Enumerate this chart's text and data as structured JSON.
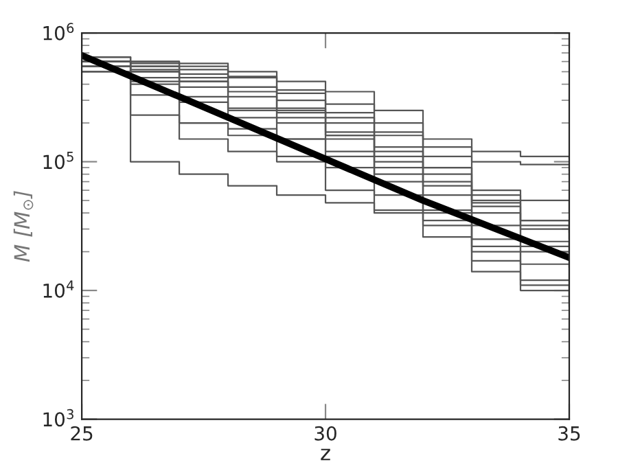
{
  "chart_data": {
    "type": "step",
    "xlabel": "z",
    "ylabel": "M [M$_{⊙}$]",
    "log": "y",
    "xlim": [
      25,
      35
    ],
    "xticks": [
      25,
      30,
      35
    ],
    "ylim": [
      1000,
      1000000
    ],
    "yticks": [
      {
        "value": 1000,
        "label": "10$^{3}$"
      },
      {
        "value": 10000,
        "label": "10$^{4}$"
      },
      {
        "value": 100000,
        "label": "10$^{5}$"
      },
      {
        "value": 1000000,
        "label": "10$^{6}$"
      }
    ],
    "grid": false,
    "x": [
      25,
      26,
      27,
      28,
      29,
      30,
      31,
      32,
      33,
      34,
      35
    ],
    "series": [
      {
        "color": "#555555",
        "values": [
          650000,
          600000,
          580000,
          500000,
          420000,
          350000,
          250000,
          150000,
          120000,
          110000,
          105000
        ]
      },
      {
        "color": "#555555",
        "values": [
          600000,
          550000,
          520000,
          450000,
          360000,
          280000,
          200000,
          130000,
          100000,
          95000,
          85000
        ]
      },
      {
        "color": "#555555",
        "values": [
          600000,
          550000,
          480000,
          380000,
          300000,
          220000,
          160000,
          90000,
          60000,
          50000,
          40000
        ]
      },
      {
        "color": "#555555",
        "values": [
          550000,
          500000,
          420000,
          350000,
          260000,
          200000,
          120000,
          80000,
          50000,
          35000,
          30000
        ]
      },
      {
        "color": "#555555",
        "values": [
          650000,
          580000,
          450000,
          380000,
          250000,
          160000,
          110000,
          70000,
          48000,
          32000,
          25000
        ]
      },
      {
        "color": "#555555",
        "values": [
          500000,
          330000,
          290000,
          260000,
          220000,
          150000,
          90000,
          65000,
          45000,
          30000,
          22000
        ]
      },
      {
        "color": "#555555",
        "values": [
          600000,
          500000,
          380000,
          250000,
          200000,
          160000,
          100000,
          55000,
          32000,
          24000,
          18000
        ]
      },
      {
        "color": "#555555",
        "values": [
          550000,
          450000,
          320000,
          220000,
          150000,
          120000,
          80000,
          42000,
          25000,
          20000,
          15000
        ]
      },
      {
        "color": "#555555",
        "values": [
          600000,
          400000,
          200000,
          180000,
          150000,
          110000,
          70000,
          40000,
          22000,
          16000,
          12000
        ]
      },
      {
        "color": "#555555",
        "values": [
          550000,
          230000,
          200000,
          160000,
          110000,
          90000,
          55000,
          32000,
          17000,
          12000,
          10000
        ]
      },
      {
        "color": "#555555",
        "values": [
          600000,
          420000,
          150000,
          120000,
          100000,
          60000,
          40000,
          26000,
          14000,
          10000,
          8000
        ]
      },
      {
        "color": "#555555",
        "values": [
          500000,
          100000,
          80000,
          65000,
          55000,
          48000,
          42000,
          35000,
          20000,
          11000,
          7500
        ]
      },
      {
        "color": "#555555",
        "values": [
          650000,
          600000,
          550000,
          460000,
          340000,
          240000,
          170000,
          110000,
          55000,
          35000,
          28000
        ]
      },
      {
        "color": "#555555",
        "values": [
          600000,
          520000,
          420000,
          320000,
          240000,
          170000,
          130000,
          90000,
          40000,
          22000,
          20000
        ]
      },
      {
        "type": "line",
        "color": "#000000",
        "x": [
          25,
          27,
          30,
          32,
          35
        ],
        "values": [
          670000,
          320000,
          105000,
          50000,
          18000
        ]
      }
    ]
  }
}
